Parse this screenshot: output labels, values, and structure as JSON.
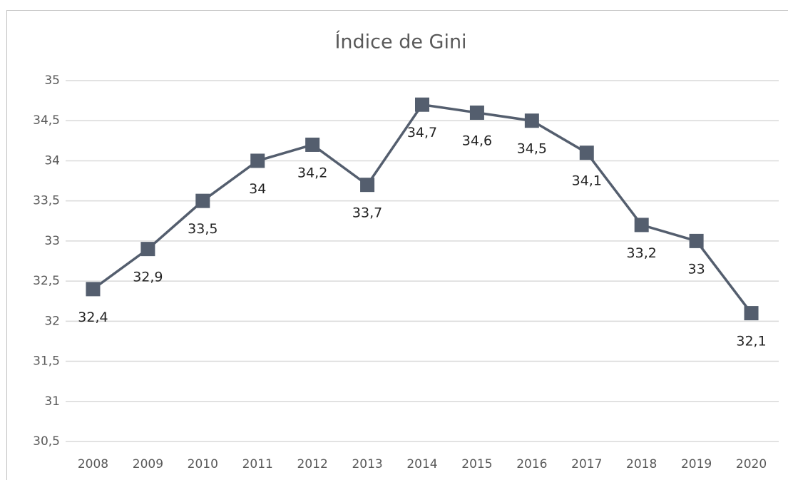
{
  "chart_data": {
    "type": "line",
    "title": "Índice de Gini",
    "categories": [
      "2008",
      "2009",
      "2010",
      "2011",
      "2012",
      "2013",
      "2014",
      "2015",
      "2016",
      "2017",
      "2018",
      "2019",
      "2020"
    ],
    "values": [
      32.4,
      32.9,
      33.5,
      34,
      34.2,
      33.7,
      34.7,
      34.6,
      34.5,
      34.1,
      33.2,
      33,
      32.1
    ],
    "value_labels": [
      "32,4",
      "32,9",
      "33,5",
      "34",
      "34,2",
      "33,7",
      "34,7",
      "34,6",
      "34,5",
      "34,1",
      "33,2",
      "33",
      "32,1"
    ],
    "color": "#545e6e",
    "ylim": [
      30.5,
      35
    ],
    "yticks": [
      {
        "value": 30.5,
        "label": "30,5"
      },
      31,
      {
        "value": 31.5,
        "label": "31,5"
      },
      32,
      {
        "value": 32.5,
        "label": "32,5"
      },
      33,
      {
        "value": 33.5,
        "label": "33,5"
      },
      34,
      {
        "value": 34.5,
        "label": "34,5"
      },
      35
    ],
    "grid": true
  }
}
